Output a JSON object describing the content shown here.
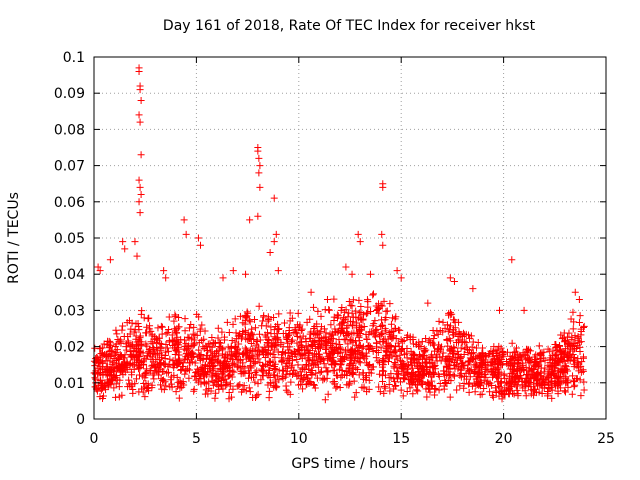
{
  "chart_data": {
    "type": "scatter",
    "title": "Day 161 of 2018, Rate Of TEC Index for receiver hkst",
    "xlabel": "GPS time / hours",
    "ylabel": "ROTI / TECUs",
    "xlim": [
      0,
      25
    ],
    "ylim": [
      0,
      0.1
    ],
    "xticks": [
      0,
      5,
      10,
      15,
      20,
      25
    ],
    "xtick_labels": [
      "0",
      "5",
      "10",
      "15",
      "20",
      "25"
    ],
    "yticks": [
      0,
      0.01,
      0.02,
      0.03,
      0.04,
      0.05,
      0.06,
      0.07,
      0.08,
      0.09,
      0.1
    ],
    "ytick_labels": [
      "0",
      "0.01",
      "0.02",
      "0.03",
      "0.04",
      "0.05",
      "0.06",
      "0.07",
      "0.08",
      "0.09",
      "0.1"
    ],
    "grid": true,
    "marker": "+",
    "color": "#ff0000",
    "baseline_band": {
      "x_range": [
        0,
        24
      ],
      "y_range": [
        0.005,
        0.02
      ],
      "density_per_hour": 110
    },
    "series": [
      {
        "name": "ROTI",
        "highlighted_points": [
          {
            "x": 2.2,
            "y": 0.097
          },
          {
            "x": 2.2,
            "y": 0.096
          },
          {
            "x": 2.25,
            "y": 0.092
          },
          {
            "x": 2.25,
            "y": 0.091
          },
          {
            "x": 2.3,
            "y": 0.088
          },
          {
            "x": 2.2,
            "y": 0.084
          },
          {
            "x": 2.25,
            "y": 0.082
          },
          {
            "x": 2.3,
            "y": 0.073
          },
          {
            "x": 2.2,
            "y": 0.066
          },
          {
            "x": 2.25,
            "y": 0.064
          },
          {
            "x": 2.3,
            "y": 0.062
          },
          {
            "x": 2.2,
            "y": 0.06
          },
          {
            "x": 2.25,
            "y": 0.057
          },
          {
            "x": 2.0,
            "y": 0.049
          },
          {
            "x": 2.1,
            "y": 0.045
          },
          {
            "x": 1.4,
            "y": 0.049
          },
          {
            "x": 1.5,
            "y": 0.047
          },
          {
            "x": 4.4,
            "y": 0.055
          },
          {
            "x": 4.5,
            "y": 0.051
          },
          {
            "x": 5.1,
            "y": 0.05
          },
          {
            "x": 5.2,
            "y": 0.048
          },
          {
            "x": 7.6,
            "y": 0.055
          },
          {
            "x": 8.0,
            "y": 0.075
          },
          {
            "x": 8.0,
            "y": 0.074
          },
          {
            "x": 8.05,
            "y": 0.072
          },
          {
            "x": 8.1,
            "y": 0.07
          },
          {
            "x": 8.05,
            "y": 0.068
          },
          {
            "x": 8.1,
            "y": 0.064
          },
          {
            "x": 8.0,
            "y": 0.056
          },
          {
            "x": 8.8,
            "y": 0.061
          },
          {
            "x": 8.9,
            "y": 0.051
          },
          {
            "x": 8.8,
            "y": 0.049
          },
          {
            "x": 8.6,
            "y": 0.046
          },
          {
            "x": 12.9,
            "y": 0.051
          },
          {
            "x": 13.0,
            "y": 0.049
          },
          {
            "x": 14.1,
            "y": 0.065
          },
          {
            "x": 14.1,
            "y": 0.064
          },
          {
            "x": 14.05,
            "y": 0.051
          },
          {
            "x": 14.1,
            "y": 0.048
          },
          {
            "x": 20.4,
            "y": 0.044
          },
          {
            "x": 0.2,
            "y": 0.042
          },
          {
            "x": 0.3,
            "y": 0.041
          },
          {
            "x": 0.8,
            "y": 0.044
          },
          {
            "x": 3.4,
            "y": 0.041
          },
          {
            "x": 3.5,
            "y": 0.039
          },
          {
            "x": 6.3,
            "y": 0.039
          },
          {
            "x": 6.8,
            "y": 0.041
          },
          {
            "x": 7.4,
            "y": 0.04
          },
          {
            "x": 9.0,
            "y": 0.041
          },
          {
            "x": 12.3,
            "y": 0.042
          },
          {
            "x": 12.6,
            "y": 0.04
          },
          {
            "x": 13.5,
            "y": 0.04
          },
          {
            "x": 14.8,
            "y": 0.041
          },
          {
            "x": 15.0,
            "y": 0.039
          },
          {
            "x": 17.4,
            "y": 0.039
          },
          {
            "x": 17.6,
            "y": 0.038
          },
          {
            "x": 18.5,
            "y": 0.036
          },
          {
            "x": 21.0,
            "y": 0.03
          },
          {
            "x": 23.5,
            "y": 0.035
          },
          {
            "x": 23.7,
            "y": 0.033
          },
          {
            "x": 16.3,
            "y": 0.032
          },
          {
            "x": 19.8,
            "y": 0.03
          },
          {
            "x": 11.4,
            "y": 0.033
          },
          {
            "x": 10.6,
            "y": 0.035
          }
        ]
      }
    ]
  }
}
